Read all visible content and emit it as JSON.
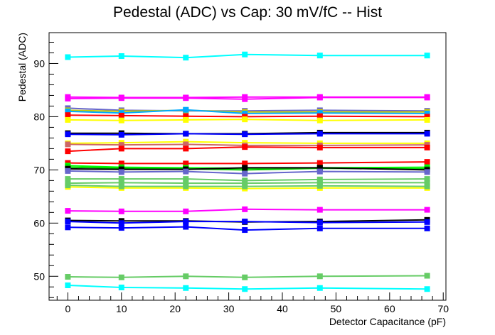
{
  "chart_data": {
    "type": "line",
    "title": "Pedestal (ADC) vs Cap: 30 mV/fC -- Hist",
    "xlabel": "Detector Capacitance (pF)",
    "ylabel": "Pedestal (ADC)",
    "xlim": [
      -3.5,
      70.5
    ],
    "ylim": [
      45.5,
      95.8
    ],
    "x_ticks": [
      0,
      10,
      20,
      30,
      40,
      50,
      60,
      70
    ],
    "y_ticks": [
      50,
      60,
      70,
      80,
      90
    ],
    "x": [
      0,
      10,
      22,
      33,
      47,
      67
    ],
    "marker": "square",
    "grid": false,
    "series": [
      {
        "color": "#00ffff",
        "values": [
          91.2,
          91.4,
          91.1,
          91.7,
          91.5,
          91.5
        ]
      },
      {
        "color": "#ff00ff",
        "values": [
          83.7,
          83.6,
          83.6,
          83.7,
          83.7,
          83.7
        ]
      },
      {
        "color": "#ff00ff",
        "values": [
          83.4,
          83.5,
          83.5,
          83.3,
          83.6,
          83.6
        ]
      },
      {
        "color": "#6666cc",
        "values": [
          81.6,
          81.2,
          81.1,
          81.1,
          81.2,
          81.1
        ]
      },
      {
        "color": "#cccc00",
        "values": [
          81.2,
          81.0,
          81.2,
          80.9,
          80.9,
          80.9
        ]
      },
      {
        "color": "#00aaff",
        "values": [
          81.0,
          80.7,
          81.3,
          80.6,
          80.7,
          80.6
        ]
      },
      {
        "color": "#ff0000",
        "values": [
          80.3,
          80.2,
          80.1,
          80.0,
          80.1,
          80.0
        ]
      },
      {
        "color": "#ffff00",
        "values": [
          79.4,
          79.3,
          79.4,
          79.5,
          79.3,
          79.4
        ]
      },
      {
        "color": "#000000",
        "values": [
          76.9,
          76.9,
          76.8,
          76.8,
          77.0,
          77.0
        ]
      },
      {
        "color": "#0000ff",
        "values": [
          76.7,
          76.6,
          76.8,
          76.7,
          76.8,
          76.8
        ]
      },
      {
        "color": "#ffff00",
        "values": [
          75.0,
          75.1,
          75.3,
          75.1,
          75.0,
          75.0
        ]
      },
      {
        "color": "#cc6666",
        "values": [
          74.8,
          74.7,
          74.8,
          74.6,
          74.6,
          74.7
        ]
      },
      {
        "color": "#ff0000",
        "values": [
          73.5,
          74.0,
          74.0,
          74.3,
          74.2,
          74.2
        ]
      },
      {
        "color": "#ff0000",
        "values": [
          71.3,
          71.2,
          71.2,
          71.2,
          71.3,
          71.5
        ]
      },
      {
        "color": "#00ff00",
        "values": [
          70.8,
          70.5,
          70.4,
          70.3,
          70.4,
          70.5
        ]
      },
      {
        "color": "#00cc00",
        "values": [
          70.5,
          70.3,
          70.2,
          70.0,
          70.3,
          70.2
        ]
      },
      {
        "color": "#000000",
        "values": [
          70.2,
          70.1,
          70.1,
          70.4,
          70.4,
          70.0
        ]
      },
      {
        "color": "#6666cc",
        "values": [
          69.8,
          69.6,
          69.7,
          69.3,
          69.7,
          69.6
        ]
      },
      {
        "color": "#66cc66",
        "values": [
          68.3,
          68.3,
          68.3,
          68.0,
          68.2,
          68.3
        ]
      },
      {
        "color": "#66cc66",
        "values": [
          67.5,
          67.6,
          67.5,
          67.5,
          67.6,
          67.6
        ]
      },
      {
        "color": "#ffff00",
        "values": [
          66.8,
          66.6,
          66.6,
          66.5,
          66.6,
          66.6
        ]
      },
      {
        "color": "#66cc66",
        "values": [
          67.1,
          66.9,
          66.9,
          66.9,
          67.0,
          66.9
        ]
      },
      {
        "color": "#ff00ff",
        "values": [
          62.3,
          62.2,
          62.2,
          62.6,
          62.5,
          62.5
        ]
      },
      {
        "color": "#000000",
        "values": [
          60.5,
          60.4,
          60.4,
          60.2,
          60.3,
          60.6
        ]
      },
      {
        "color": "#0000ff",
        "values": [
          60.3,
          60.0,
          60.3,
          60.3,
          60.1,
          60.2
        ]
      },
      {
        "color": "#0000ff",
        "values": [
          59.2,
          59.1,
          59.3,
          58.7,
          59.0,
          59.0
        ]
      },
      {
        "color": "#66cc66",
        "values": [
          49.9,
          49.8,
          50.0,
          49.8,
          50.0,
          50.1
        ]
      },
      {
        "color": "#00ffff",
        "values": [
          48.3,
          47.9,
          47.8,
          47.6,
          47.8,
          47.6
        ]
      }
    ]
  }
}
